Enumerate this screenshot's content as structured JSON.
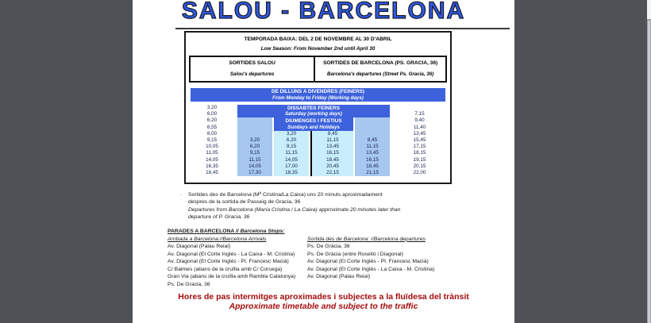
{
  "page": {
    "title": "SALOU - BARCELONA"
  },
  "season": {
    "line_ca": "TEMPORADA BAIXA: DEL 2 DE NOVEMBRE AL 30 D'ABRIL",
    "line_en": "Low Season: From November 2nd until April 30"
  },
  "direction_header": {
    "salou_ca": "SORTIDES SALOU",
    "salou_en": "Salou's departures",
    "barcelona_ca": "SORTIDES DE BARCELONA (PS. GRACIA, 36)",
    "barcelona_en": "Barcelona's departures (Street Ps. Gracia, 36)"
  },
  "banners": {
    "weekdays_ca": "DE DILLUNS A DIVENDRES (FEINERS)",
    "weekdays_en": "From Monday to Friday (Working days)",
    "saturday_ca": "DISSABTES FEINERS",
    "saturday_en": "Saturday (working days)",
    "sunday_ca": "DIUMENGES I FESTIUS",
    "sunday_en": "Sundays and Holidays"
  },
  "colors": {
    "banner_blue": "#3d62dc",
    "saturday_cell": "#a6c8ef",
    "sunday_cell": "#c7eefa",
    "title_blue": "#2e5be6",
    "notice_red": "#a50d0d"
  },
  "chart_data": {
    "type": "table",
    "title": "SALOU - BARCELONA low season timetable",
    "columns": [
      {
        "name": "salou_weekdays",
        "times": [
          "3,20",
          "6,00",
          "6,20",
          "6,55",
          "8,00",
          "9,15",
          "10,05",
          "11,05",
          "14,05",
          "16,35",
          "18,45"
        ]
      },
      {
        "name": "salou_saturday",
        "times": [
          "3,20",
          "6,20",
          "9,15",
          "11,15",
          "14,05",
          "17,30"
        ]
      },
      {
        "name": "salou_sunday_holidays",
        "times": [
          "3,20",
          "6,20",
          "9,15",
          "11,15",
          "14,05",
          "17,00",
          "18,35"
        ]
      },
      {
        "name": "barcelona_sunday_holidays",
        "times": [
          "8,45",
          "11,15",
          "13,45",
          "16,15",
          "18,45",
          "20,45",
          "22,15"
        ]
      },
      {
        "name": "barcelona_saturday",
        "times": [
          "8,45",
          "11,15",
          "13,45",
          "16,15",
          "18,45",
          "21,15"
        ]
      },
      {
        "name": "barcelona_weekdays",
        "times": [
          "7,15",
          "9,40",
          "11,40",
          "13,45",
          "15,45",
          "17,15",
          "18,15",
          "19,15",
          "20,15",
          "22,00"
        ]
      }
    ],
    "grid_rows": [
      [
        "3,20",
        "",
        "",
        "",
        "",
        ""
      ],
      [
        "6,00",
        "",
        "",
        "",
        "",
        "7,15"
      ],
      [
        "6,20",
        "",
        "",
        "",
        "",
        "9,40"
      ],
      [
        "6,55",
        "",
        "",
        "",
        "",
        "11,40"
      ],
      [
        "8,00",
        "",
        "3,20",
        "8,45",
        "",
        "13,45"
      ],
      [
        "9,15",
        "3,20",
        "6,20",
        "11,15",
        "8,45",
        "15,45"
      ],
      [
        "10,05",
        "6,20",
        "9,15",
        "13,45",
        "11,15",
        "17,15"
      ],
      [
        "11,05",
        "9,15",
        "11,15",
        "16,15",
        "13,45",
        "18,15"
      ],
      [
        "14,05",
        "11,15",
        "14,05",
        "18,45",
        "16,15",
        "19,15"
      ],
      [
        "16,35",
        "14,05",
        "17,00",
        "20,45",
        "18,45",
        "20,15"
      ],
      [
        "18,45",
        "17,30",
        "18,35",
        "22,15",
        "21,15",
        "22,00"
      ]
    ]
  },
  "footnote": {
    "bullet": "·",
    "ca1": "Sortides des de Barcelona (Mª Cristina/La Caixa) uns 20 minuts aproximadament",
    "ca2": "despres de la sortida de Passeig de Gracia, 36",
    "en1": "Departures from Barcelona (María Cristina / La Caixa) approximate 20 minutes later than",
    "en2": "departure of P. Gracia, 36"
  },
  "stops": {
    "title_ca": "PARADES A BARCELONA // ",
    "title_en": "Barcelona Stops:",
    "arrivals_heading": "Arribada a Barcelona://Barcelona Arrivals",
    "arrivals": [
      "Av. Diagonal (Palau Reial)",
      "Av. Diagonal (El Corte Inglés - La Caixa - M. Cristina)",
      "Av. Diagonal (El Corte Inglés - Pl. Francesc Macià)",
      "C/ Balmes (abans de la cruïlla amb C/ Corsega)",
      "Gran Via (abans de la cruïlla amb Rambla Catalunya)",
      "Ps. De Gracia, 36"
    ],
    "departures_heading": "Sortida des de Barcelona: //Barcelona departures",
    "departures": [
      "Ps. De Gràcia, 36",
      "Ps. De Gràcia (entre Roselló i Diagonal)",
      "Av. Diagonal (El Corte Inglés - Pl. Francesc Macià)",
      "Av. Diagonal (El Corte Inglés - La Caixa - M. Cristina)",
      "Av. Diagonal (Palau Reial)"
    ]
  },
  "notice": {
    "ca": "Hores de pas intermitges aproximades i subjectes a la fluïdesa del trànsit",
    "en": "Approximate timetable and subject to the traffic"
  }
}
